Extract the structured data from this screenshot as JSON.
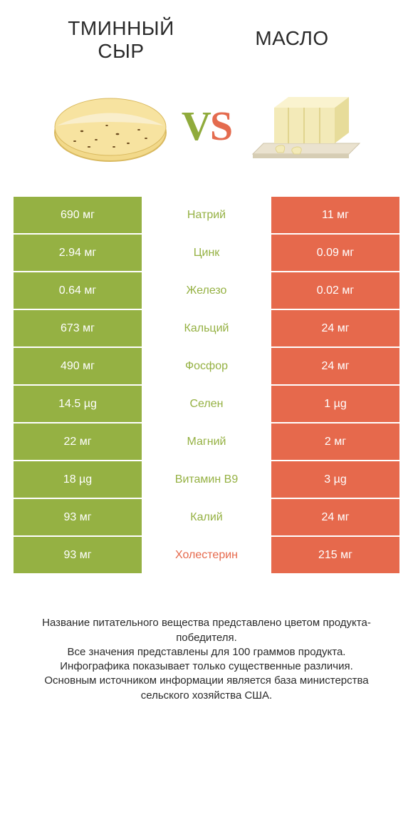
{
  "colors": {
    "green": "#95b143",
    "orange": "#e6694c",
    "label_green": "#95b143",
    "label_orange": "#e6694c",
    "cell_text": "#ffffff",
    "body_text": "#2a2a2a"
  },
  "header": {
    "left_title": "ТМИННЫЙ СЫР",
    "right_title": "МАСЛО"
  },
  "vs": {
    "v": "V",
    "s": "S"
  },
  "table": {
    "rows": [
      {
        "left": "690 мг",
        "center": "Натрий",
        "right": "11 мг",
        "winner": "left"
      },
      {
        "left": "2.94 мг",
        "center": "Цинк",
        "right": "0.09 мг",
        "winner": "left"
      },
      {
        "left": "0.64 мг",
        "center": "Железо",
        "right": "0.02 мг",
        "winner": "left"
      },
      {
        "left": "673 мг",
        "center": "Кальций",
        "right": "24 мг",
        "winner": "left"
      },
      {
        "left": "490 мг",
        "center": "Фосфор",
        "right": "24 мг",
        "winner": "left"
      },
      {
        "left": "14.5 µg",
        "center": "Селен",
        "right": "1 µg",
        "winner": "left"
      },
      {
        "left": "22 мг",
        "center": "Магний",
        "right": "2 мг",
        "winner": "left"
      },
      {
        "left": "18 µg",
        "center": "Витамин B9",
        "right": "3 µg",
        "winner": "left"
      },
      {
        "left": "93 мг",
        "center": "Калий",
        "right": "24 мг",
        "winner": "left"
      },
      {
        "left": "93 мг",
        "center": "Холестерин",
        "right": "215 мг",
        "winner": "right"
      }
    ]
  },
  "footer": {
    "line1": "Название питательного вещества представлено цветом продукта-победителя.",
    "line2": "Все значения представлены для 100 граммов продукта.",
    "line3": "Инфографика показывает только существенные различия.",
    "line4": "Основным источником информации является база министерства сельского хозяйства США."
  }
}
